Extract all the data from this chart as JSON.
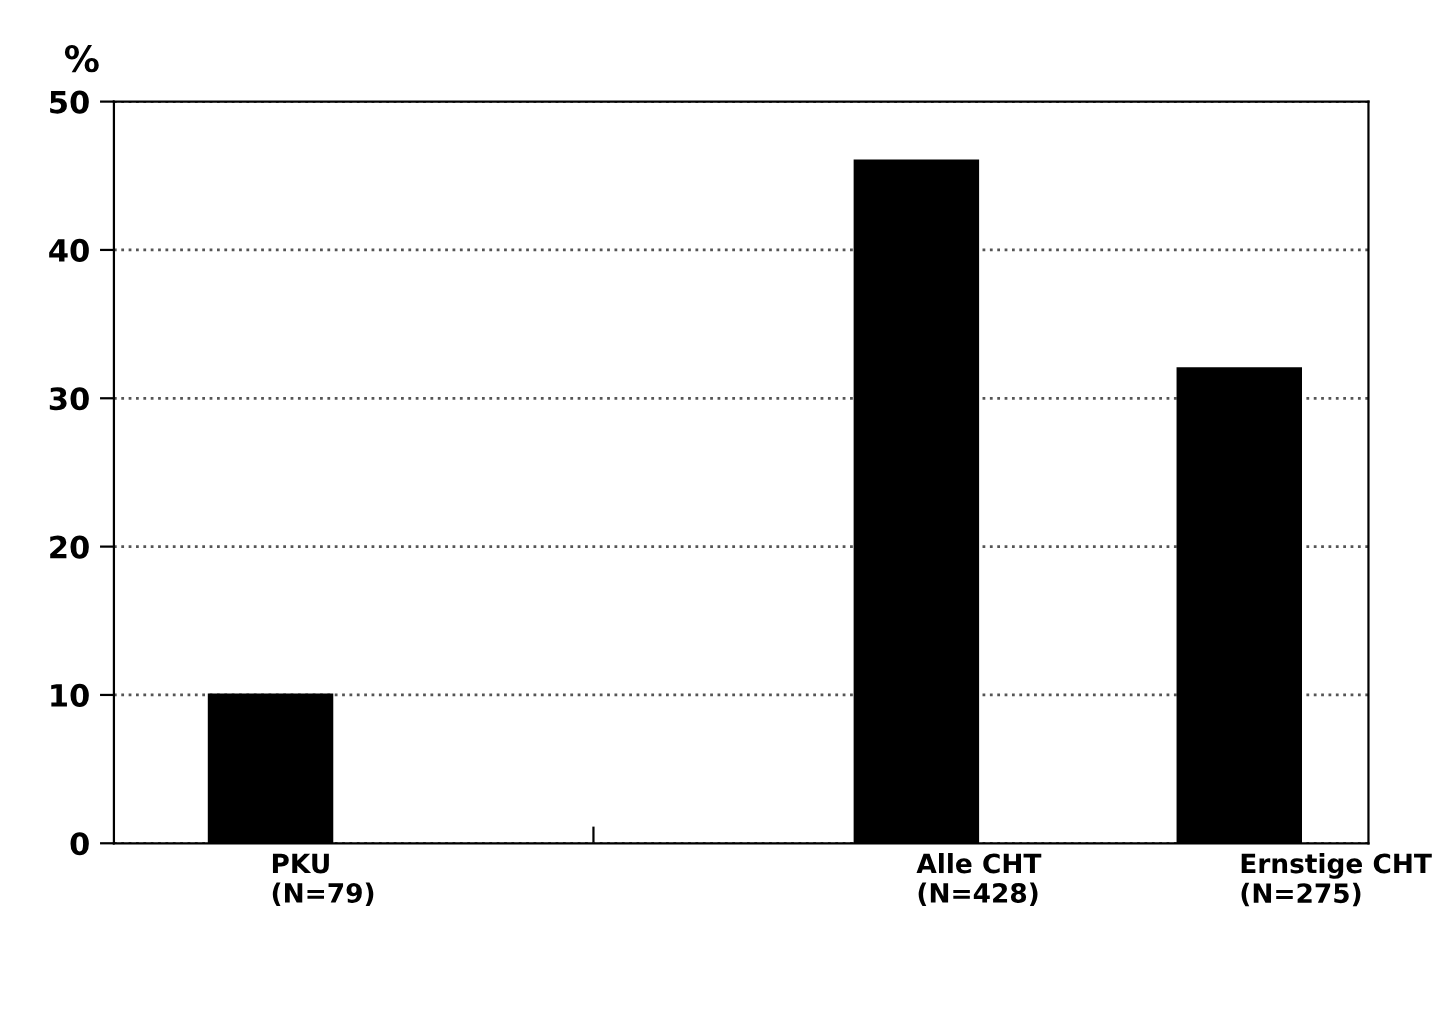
{
  "chart_data": {
    "type": "bar",
    "ylabel": "%",
    "categories": [
      "PKU\n(N=79)",
      null,
      "Alle CHT\n(N=428)",
      "Ernstige CHT\n(N=275)"
    ],
    "values": [
      10,
      null,
      46,
      32
    ],
    "color": "#000000",
    "ylim": [
      0,
      50
    ],
    "yticks": [
      0,
      10,
      20,
      30,
      40,
      50
    ],
    "grid": "y",
    "line_style": "dotted"
  }
}
